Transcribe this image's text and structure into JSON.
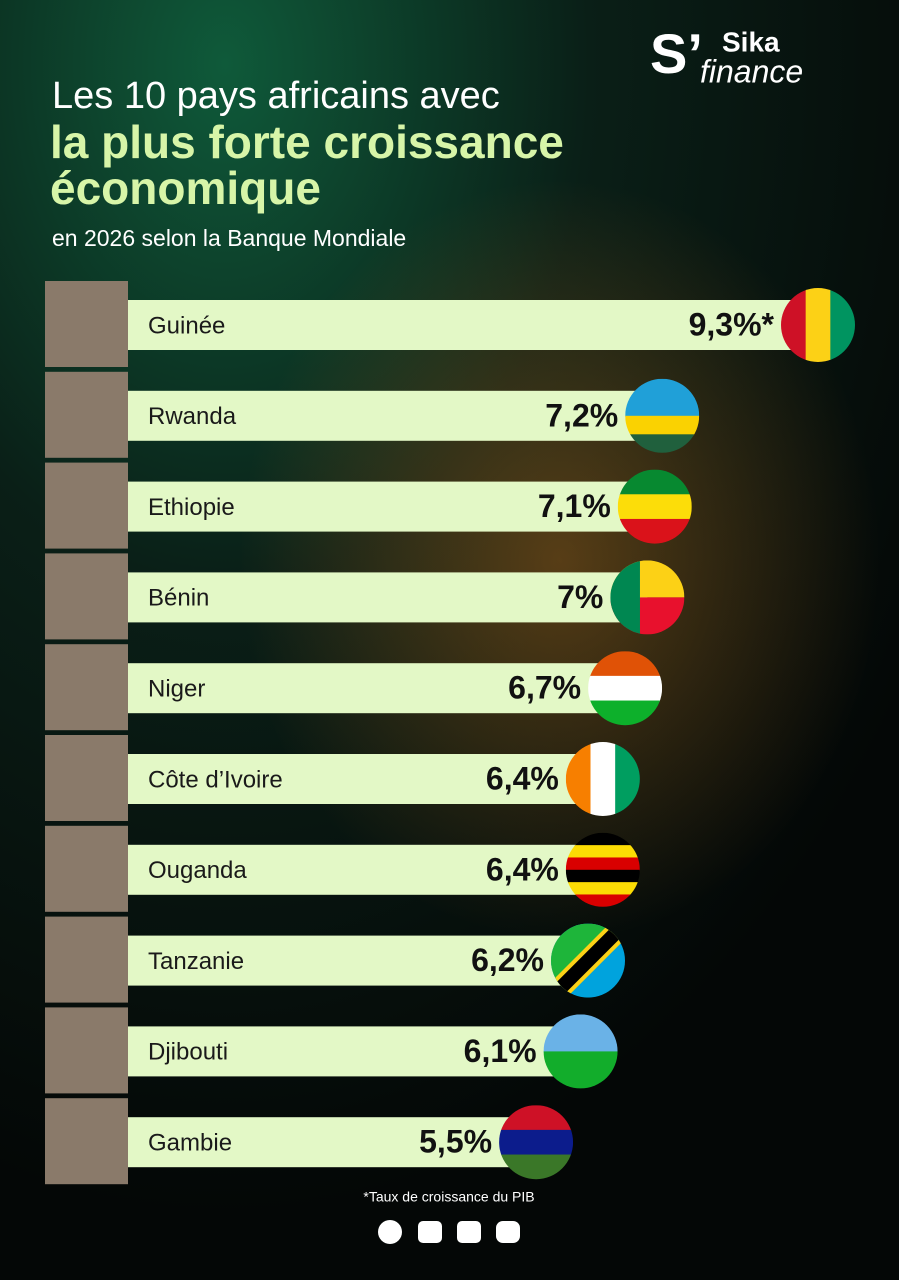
{
  "logo": {
    "mark": "S’",
    "name": "Sika",
    "sub": "finance"
  },
  "chart_data": {
    "type": "bar",
    "title": [
      "Les 10 pays africains avec",
      "la plus forte croissance",
      "économique"
    ],
    "subtitle": "en 2026 selon la Banque Mondiale",
    "categories": [
      "Guinée",
      "Rwanda",
      "Ethiopie",
      "Bénin",
      "Niger",
      "Côte d’Ivoire",
      "Ouganda",
      "Tanzanie",
      "Djibouti",
      "Gambie"
    ],
    "values": [
      9.3,
      7.2,
      7.1,
      7,
      6.7,
      6.4,
      6.4,
      6.2,
      6.1,
      5.5
    ],
    "value_labels": [
      "9,3%*",
      "7,2%",
      "7,1%",
      "7%",
      "6,7%",
      "6,4%",
      "6,4%",
      "6,2%",
      "6,1%",
      "5,5%"
    ],
    "color": "#e3f8c6",
    "note": "*Taux de croissance du PIB"
  }
}
